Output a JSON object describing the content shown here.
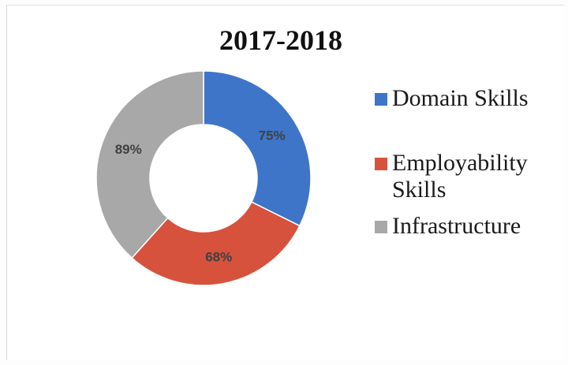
{
  "chart_data": {
    "type": "pie",
    "subtype": "donut",
    "title": "2017-2018",
    "categories": [
      "Domain Skills",
      "Employability Skills",
      "Infrastructure"
    ],
    "values": [
      75,
      68,
      89
    ],
    "data_labels": [
      "75%",
      "68%",
      "89%"
    ],
    "colors": [
      "#3e75c8",
      "#d6523d",
      "#a8a8a8"
    ],
    "legend_position": "right"
  }
}
